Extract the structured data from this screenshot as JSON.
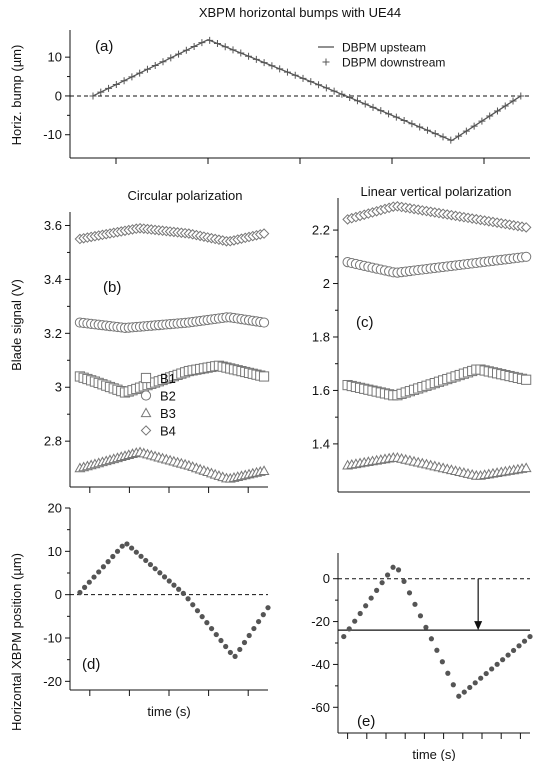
{
  "figure": {
    "title": "XBPM horizontal bumps with UE44",
    "ylabel_bump": "Horiz. bump (µm)",
    "ylabel_blade": "Blade signal (V)",
    "ylabel_position": "Horizontal XBPM position (µm)"
  },
  "colors": {
    "line": "#555555",
    "marker_stroke": "#777777",
    "dot": "#555555",
    "axis": "#111111"
  },
  "chart_data": [
    {
      "id": "a",
      "type": "line",
      "panel_label": "(a)",
      "title": "",
      "xlabel": "",
      "ylabel": "Horiz. bump (µm)",
      "xlim": [
        0,
        100
      ],
      "ylim": [
        -16,
        17
      ],
      "yticks": [
        -10,
        0,
        10
      ],
      "xticks": [
        10,
        30,
        50,
        70,
        90
      ],
      "zero_line": "dashed",
      "legend": {
        "placement": "top-right",
        "entries": [
          "DBPM upsteam",
          "DBPM downstream"
        ]
      },
      "series": [
        {
          "name": "DBPM upsteam",
          "marker": "none",
          "x": [
            5,
            30,
            60,
            83,
            98
          ],
          "y": [
            0,
            14.5,
            0,
            -11.5,
            0
          ]
        },
        {
          "name": "DBPM downstream",
          "marker": "plus",
          "x": [
            5,
            30,
            60,
            83,
            98
          ],
          "y": [
            0,
            14.5,
            0,
            -11.5,
            0
          ],
          "n_markers": 56
        }
      ]
    },
    {
      "id": "b",
      "type": "scatter",
      "panel_label": "(b)",
      "title": "Circular polarization",
      "xlabel": "",
      "ylabel": "Blade signal (V)",
      "xlim": [
        0,
        100
      ],
      "ylim": [
        2.63,
        3.65
      ],
      "yticks": [
        2.8,
        3.0,
        3.2,
        3.4,
        3.6
      ],
      "xticks": [
        10,
        30,
        50,
        70,
        90
      ],
      "legend": {
        "placement": "center",
        "entries": [
          "B1",
          "B2",
          "B3",
          "B4"
        ]
      },
      "n_points": 50,
      "series": [
        {
          "name": "B1",
          "marker": "square",
          "x": [
            5,
            13,
            28,
            60,
            75,
            98
          ],
          "y": [
            3.04,
            3.02,
            2.98,
            3.06,
            3.08,
            3.04
          ]
        },
        {
          "name": "B2",
          "marker": "circle",
          "x": [
            5,
            28,
            60,
            80,
            98
          ],
          "y": [
            3.24,
            3.22,
            3.24,
            3.26,
            3.24
          ]
        },
        {
          "name": "B3",
          "marker": "triangle",
          "x": [
            5,
            35,
            60,
            80,
            98
          ],
          "y": [
            2.7,
            2.76,
            2.71,
            2.66,
            2.69
          ]
        },
        {
          "name": "B4",
          "marker": "diamond",
          "x": [
            5,
            35,
            60,
            80,
            98
          ],
          "y": [
            3.55,
            3.59,
            3.57,
            3.54,
            3.57
          ]
        }
      ]
    },
    {
      "id": "c",
      "type": "scatter",
      "panel_label": "(c)",
      "title": "Linear vertical polarization",
      "xlabel": "",
      "ylabel": "",
      "xlim": [
        0,
        100
      ],
      "ylim": [
        1.22,
        2.32
      ],
      "yticks": [
        1.4,
        1.6,
        1.8,
        2.0,
        2.2
      ],
      "xticks": [],
      "n_points": 44,
      "series": [
        {
          "name": "B1",
          "marker": "square",
          "x": [
            5,
            30,
            73,
            98
          ],
          "y": [
            1.62,
            1.58,
            1.68,
            1.64
          ]
        },
        {
          "name": "B2",
          "marker": "circle",
          "x": [
            5,
            30,
            98
          ],
          "y": [
            2.08,
            2.04,
            2.1
          ]
        },
        {
          "name": "B3",
          "marker": "triangle",
          "x": [
            5,
            30,
            73,
            98
          ],
          "y": [
            1.32,
            1.35,
            1.28,
            1.31
          ]
        },
        {
          "name": "B4",
          "marker": "diamond",
          "x": [
            5,
            30,
            98
          ],
          "y": [
            2.24,
            2.29,
            2.21
          ]
        }
      ]
    },
    {
      "id": "d",
      "type": "scatter",
      "panel_label": "(d)",
      "title": "",
      "xlabel": "time (s)",
      "ylabel": "Horizontal XBPM position (µm)",
      "xlim": [
        0,
        100
      ],
      "ylim": [
        -22,
        20
      ],
      "yticks": [
        -20,
        -10,
        0,
        10,
        20
      ],
      "xticks": [
        10,
        30,
        50,
        70,
        90
      ],
      "zero_line": "dashed",
      "n_points": 41,
      "series": [
        {
          "name": "",
          "marker": "dot",
          "x": [
            5,
            28,
            58,
            83,
            100
          ],
          "y": [
            0.5,
            12,
            0,
            -14.5,
            -3
          ]
        }
      ]
    },
    {
      "id": "e",
      "type": "scatter",
      "panel_label": "(e)",
      "title": "",
      "xlabel": "time (s)",
      "ylabel": "",
      "xlim": [
        0,
        100
      ],
      "ylim": [
        -72,
        12
      ],
      "yticks": [
        -60,
        -40,
        -20,
        0
      ],
      "xticks": [
        5,
        15,
        25,
        35,
        45,
        55,
        65,
        75,
        85,
        95
      ],
      "zero_line": "dashed",
      "reference_line": -24,
      "arrow": {
        "x": 73,
        "from": 0,
        "to": -24
      },
      "n_points": 35,
      "series": [
        {
          "name": "",
          "marker": "dot",
          "x": [
            3,
            30,
            63,
            100
          ],
          "y": [
            -27,
            7,
            -55,
            -27
          ]
        }
      ]
    }
  ]
}
